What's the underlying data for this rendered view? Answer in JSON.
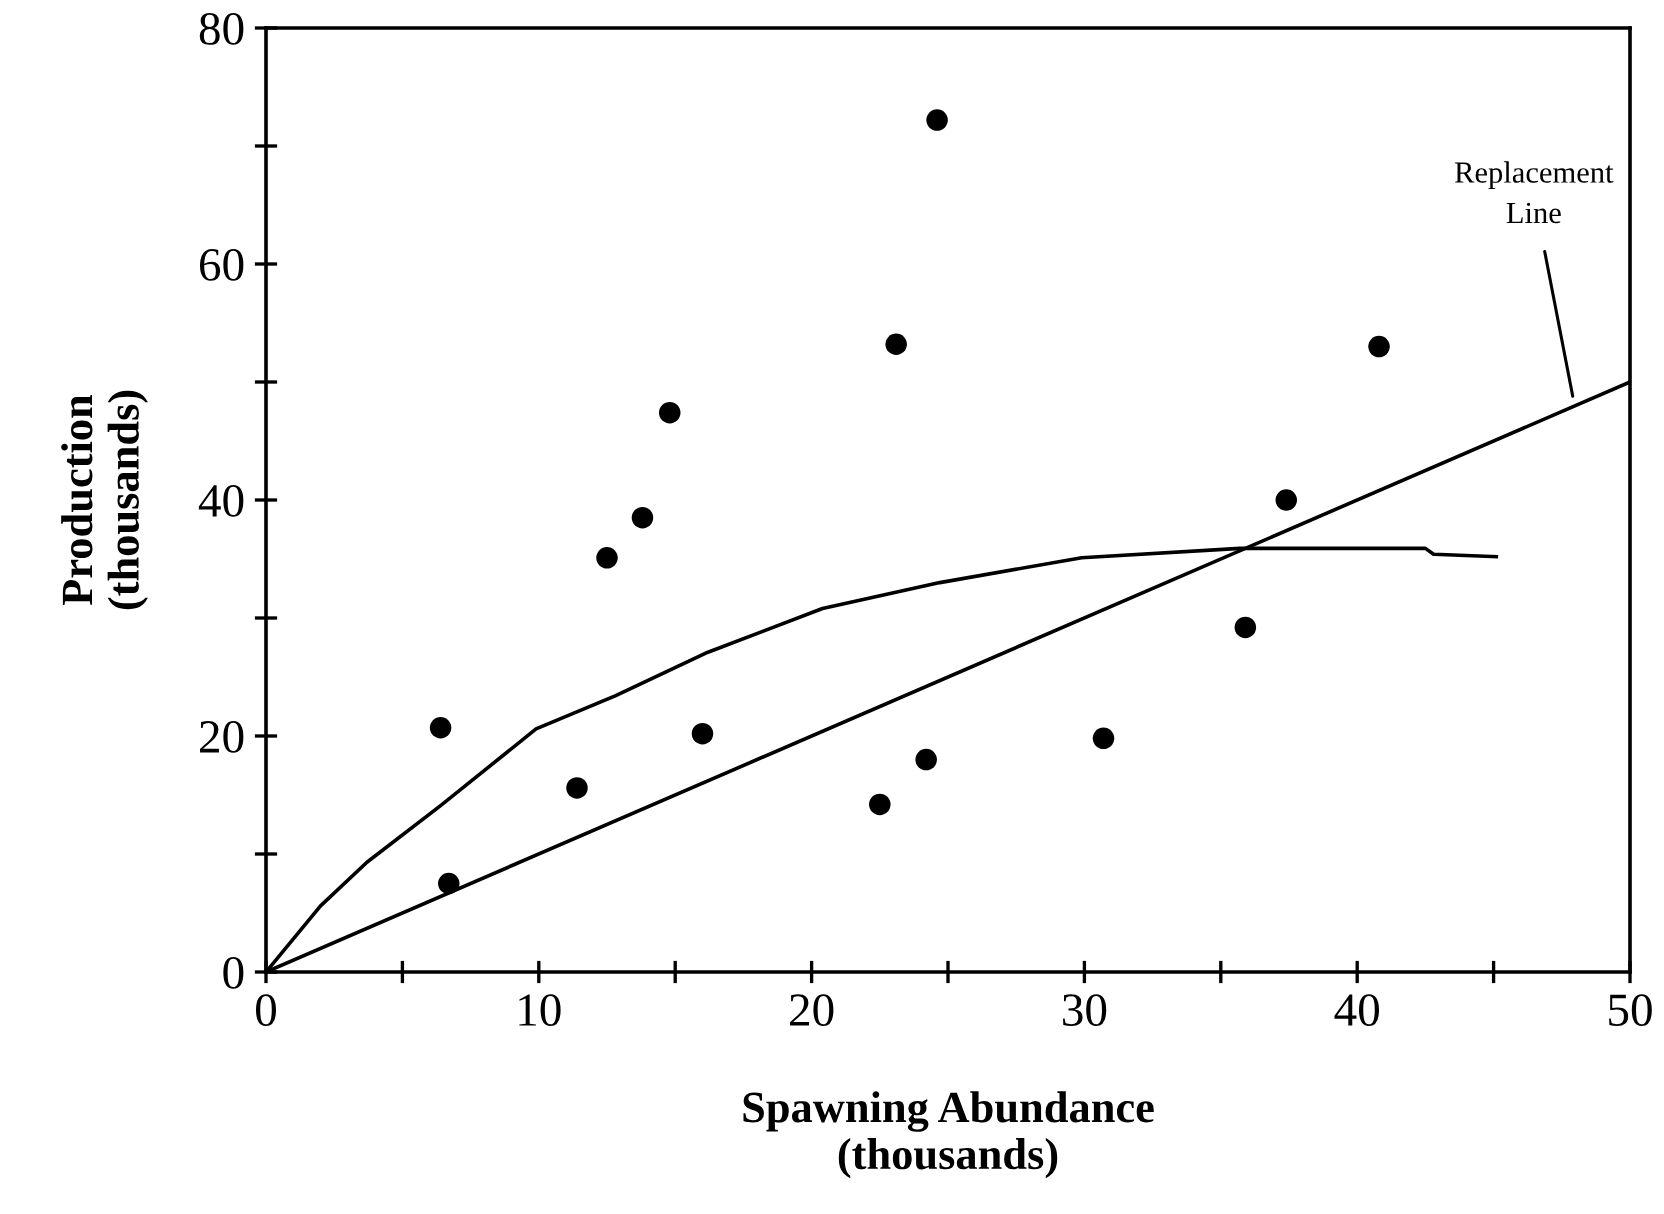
{
  "chart_data": {
    "type": "scatter",
    "xlabel": "Spawning Abundance\n(thousands)",
    "ylabel": "Production\n(thousands)",
    "xlim": [
      0,
      50
    ],
    "ylim": [
      0,
      80
    ],
    "xticks": [
      0,
      {
        "value": 5,
        "label": null
      },
      10,
      {
        "value": 15,
        "label": null
      },
      20,
      {
        "value": 25,
        "label": null
      },
      30,
      {
        "value": 35,
        "label": null
      },
      40,
      {
        "value": 45,
        "label": null
      },
      50
    ],
    "yticks": [
      0,
      {
        "value": 10,
        "label": null
      },
      20,
      {
        "value": 30,
        "label": null
      },
      40,
      {
        "value": 50,
        "label": null
      },
      60,
      {
        "value": 70,
        "label": null
      },
      80
    ],
    "grid": false,
    "legend": false,
    "series": [
      {
        "color": "#000000",
        "marker": "circle",
        "x": [
          6.4,
          6.7,
          11.4,
          12.5,
          13.8,
          14.8,
          16.0,
          22.5,
          23.1,
          24.2,
          24.6,
          30.7,
          35.9,
          37.4,
          40.8
        ],
        "values": [
          20.7,
          7.5,
          15.6,
          35.1,
          38.5,
          47.4,
          20.2,
          14.2,
          53.2,
          18.0,
          72.2,
          19.8,
          29.2,
          40.0,
          53.0
        ]
      },
      {
        "type": "line",
        "color": "#000000",
        "marker": "none",
        "line_style": "solid",
        "x": [
          0,
          2.0,
          3.7,
          6.4,
          9.9,
          12.8,
          16.2,
          20.4,
          24.7,
          29.9,
          35.7,
          42.5,
          42.8,
          45.1
        ],
        "values": [
          0,
          5.6,
          9.3,
          14.1,
          20.6,
          23.4,
          27.1,
          30.8,
          33.0,
          35.1,
          35.9,
          35.9,
          35.4,
          35.2
        ]
      },
      {
        "type": "line",
        "color": "#000000",
        "marker": "none",
        "line_style": "solid",
        "x": [
          0,
          50
        ],
        "values": [
          0,
          50
        ]
      }
    ],
    "annotations": [
      {
        "text": "Replacement\nLine",
        "x": 47.9,
        "y": 48.8
      }
    ]
  }
}
